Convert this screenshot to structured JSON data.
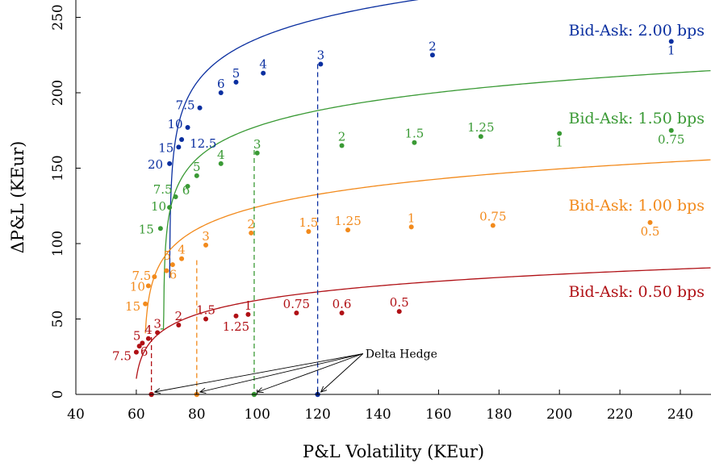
{
  "chart_data": {
    "type": "scatter",
    "xlabel": "P&L Volatility (KEur)",
    "ylabel": "ΔP&L (KEur)",
    "xlim": [
      40,
      250
    ],
    "ylim": [
      0,
      262
    ],
    "xticks": [
      40,
      60,
      80,
      100,
      120,
      140,
      160,
      180,
      200,
      220,
      240
    ],
    "yticks": [
      0,
      50,
      100,
      150,
      200,
      250
    ],
    "grid": false,
    "annotation": {
      "text": "Delta Hedge",
      "anchor": [
        135,
        27
      ],
      "targets": [
        [
          65,
          0
        ],
        [
          80,
          0
        ],
        [
          99,
          0
        ],
        [
          120,
          0
        ]
      ]
    },
    "series": [
      {
        "name": "Bid-Ask: 2.00 bps",
        "color": "#0a2fa0",
        "delta_hedge": [
          120,
          219
        ],
        "fit": {
          "x0": 71,
          "a": 152,
          "b": 24.9
        },
        "points": [
          {
            "x": 237,
            "y": 234,
            "label": "1"
          },
          {
            "x": 158,
            "y": 225,
            "label": "2"
          },
          {
            "x": 121,
            "y": 219,
            "label": "3"
          },
          {
            "x": 102,
            "y": 213,
            "label": "4"
          },
          {
            "x": 93,
            "y": 207,
            "label": "5"
          },
          {
            "x": 88,
            "y": 200,
            "label": "6"
          },
          {
            "x": 81,
            "y": 190,
            "label": "7.5"
          },
          {
            "x": 77,
            "y": 177,
            "label": "10"
          },
          {
            "x": 75,
            "y": 169,
            "label": "12.5"
          },
          {
            "x": 74,
            "y": 164,
            "label": "15"
          },
          {
            "x": 71,
            "y": 153,
            "label": "20"
          }
        ]
      },
      {
        "name": "Bid-Ask: 1.50 bps",
        "color": "#3a9a35",
        "delta_hedge": [
          99,
          162
        ],
        "fit": {
          "x0": 69,
          "a": 106,
          "b": 20.9
        },
        "points": [
          {
            "x": 237,
            "y": 175,
            "label": "0.75"
          },
          {
            "x": 200,
            "y": 173,
            "label": "1"
          },
          {
            "x": 174,
            "y": 171,
            "label": "1.25"
          },
          {
            "x": 152,
            "y": 167,
            "label": "1.5"
          },
          {
            "x": 128,
            "y": 165,
            "label": "2"
          },
          {
            "x": 100,
            "y": 160,
            "label": "3"
          },
          {
            "x": 88,
            "y": 153,
            "label": "4"
          },
          {
            "x": 80,
            "y": 145,
            "label": "5"
          },
          {
            "x": 77,
            "y": 138,
            "label": "6"
          },
          {
            "x": 73,
            "y": 131,
            "label": "7.5"
          },
          {
            "x": 71,
            "y": 124,
            "label": "10"
          },
          {
            "x": 68,
            "y": 110,
            "label": "15"
          }
        ]
      },
      {
        "name": "Bid-Ask: 1.00 bps",
        "color": "#f28a1c",
        "delta_hedge": [
          80,
          89
        ],
        "fit": {
          "x0": 62.5,
          "a": 54,
          "b": 19.4
        },
        "points": [
          {
            "x": 230,
            "y": 114,
            "label": "0.5"
          },
          {
            "x": 178,
            "y": 112,
            "label": "0.75"
          },
          {
            "x": 151,
            "y": 111,
            "label": "1"
          },
          {
            "x": 130,
            "y": 109,
            "label": "1.25"
          },
          {
            "x": 117,
            "y": 108,
            "label": "1.5"
          },
          {
            "x": 98,
            "y": 107,
            "label": "2"
          },
          {
            "x": 83,
            "y": 99,
            "label": "3"
          },
          {
            "x": 75,
            "y": 90,
            "label": "4"
          },
          {
            "x": 72,
            "y": 86,
            "label": "5"
          },
          {
            "x": 70,
            "y": 82,
            "label": "6"
          },
          {
            "x": 66,
            "y": 78,
            "label": "7.5"
          },
          {
            "x": 64,
            "y": 72,
            "label": "10"
          },
          {
            "x": 63,
            "y": 60,
            "label": "15"
          }
        ]
      },
      {
        "name": "Bid-Ask: 0.50 bps",
        "color": "#b01015",
        "delta_hedge": [
          65,
          38
        ],
        "fit": {
          "x0": 59,
          "a": 10.4,
          "b": 14.0
        },
        "points": [
          {
            "x": 147,
            "y": 55,
            "label": "0.5"
          },
          {
            "x": 128,
            "y": 54,
            "label": "0.6"
          },
          {
            "x": 113,
            "y": 54,
            "label": "0.75"
          },
          {
            "x": 97,
            "y": 53,
            "label": "1"
          },
          {
            "x": 93,
            "y": 52,
            "label": "1.25"
          },
          {
            "x": 83,
            "y": 50,
            "label": "1.5"
          },
          {
            "x": 74,
            "y": 46,
            "label": "2"
          },
          {
            "x": 67,
            "y": 41,
            "label": "3"
          },
          {
            "x": 64,
            "y": 37,
            "label": "4"
          },
          {
            "x": 62,
            "y": 34,
            "label": "5"
          },
          {
            "x": 61,
            "y": 32,
            "label": "6"
          },
          {
            "x": 60,
            "y": 28,
            "label": "7.5"
          }
        ]
      }
    ]
  }
}
